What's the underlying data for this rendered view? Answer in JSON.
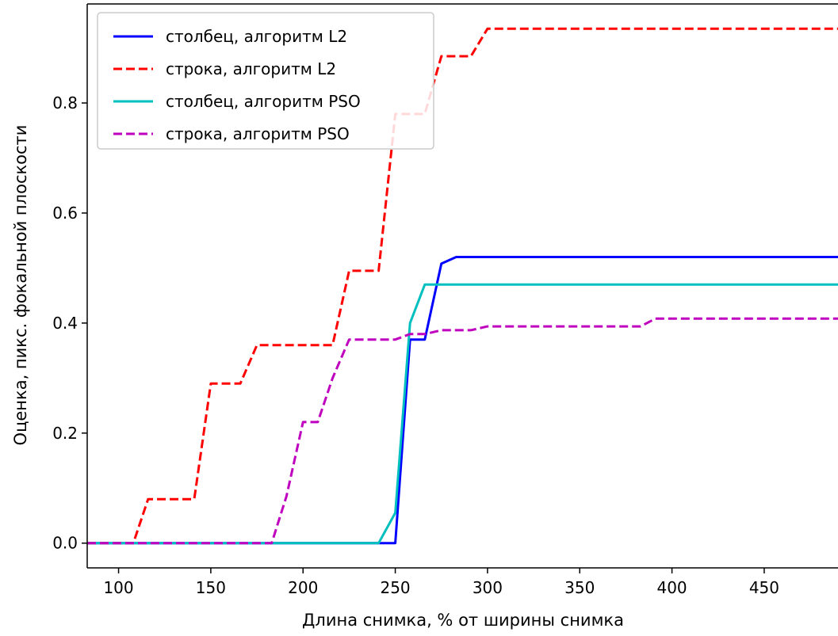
{
  "chart_data": {
    "type": "line",
    "title": "",
    "xlabel": "Длина снимка, % от ширины снимка",
    "ylabel": "Оценка, пикс. фокальной плоскости",
    "xlim": [
      83,
      490
    ],
    "ylim": [
      -0.045,
      0.98
    ],
    "x_ticks": [
      100,
      150,
      200,
      250,
      300,
      350,
      400,
      450
    ],
    "y_ticks": [
      0.0,
      0.2,
      0.4,
      0.6,
      0.8
    ],
    "x_tick_labels": [
      "100",
      "150",
      "200",
      "250",
      "300",
      "350",
      "400",
      "450"
    ],
    "y_tick_labels": [
      "0.0",
      "0.2",
      "0.4",
      "0.6",
      "0.8"
    ],
    "grid": false,
    "legend_placement": "top-left",
    "series": [
      {
        "name": "столбец, алгоритм L2",
        "color": "#0000ff",
        "dash": "solid",
        "points": [
          [
            83,
            0
          ],
          [
            250,
            0
          ],
          [
            258,
            0.37
          ],
          [
            266,
            0.37
          ],
          [
            275,
            0.508
          ],
          [
            283,
            0.52
          ],
          [
            490,
            0.52
          ]
        ]
      },
      {
        "name": "строка, алгоритм L2",
        "color": "#ff0000",
        "dash": "dashed",
        "points": [
          [
            83,
            0
          ],
          [
            108,
            0
          ],
          [
            116,
            0.08
          ],
          [
            141,
            0.08
          ],
          [
            150,
            0.29
          ],
          [
            166,
            0.29
          ],
          [
            175,
            0.36
          ],
          [
            216,
            0.36
          ],
          [
            225,
            0.495
          ],
          [
            241,
            0.495
          ],
          [
            250,
            0.78
          ],
          [
            266,
            0.78
          ],
          [
            275,
            0.885
          ],
          [
            283,
            0.885
          ],
          [
            291,
            0.885
          ],
          [
            300,
            0.935
          ],
          [
            490,
            0.935
          ]
        ]
      },
      {
        "name": "столбец, алгоритм PSO",
        "color": "#00bfbf",
        "dash": "solid",
        "points": [
          [
            83,
            0
          ],
          [
            241,
            0
          ],
          [
            250,
            0.055
          ],
          [
            258,
            0.4
          ],
          [
            266,
            0.47
          ],
          [
            490,
            0.47
          ]
        ]
      },
      {
        "name": "строка, алгоритм PSO",
        "color": "#bf00bf",
        "dash": "dashed",
        "points": [
          [
            83,
            0
          ],
          [
            183,
            0
          ],
          [
            191,
            0.085
          ],
          [
            200,
            0.22
          ],
          [
            208,
            0.22
          ],
          [
            216,
            0.3
          ],
          [
            225,
            0.37
          ],
          [
            250,
            0.37
          ],
          [
            258,
            0.38
          ],
          [
            266,
            0.38
          ],
          [
            275,
            0.387
          ],
          [
            291,
            0.387
          ],
          [
            300,
            0.394
          ],
          [
            383,
            0.394
          ],
          [
            391,
            0.408
          ],
          [
            490,
            0.408
          ]
        ]
      }
    ]
  }
}
